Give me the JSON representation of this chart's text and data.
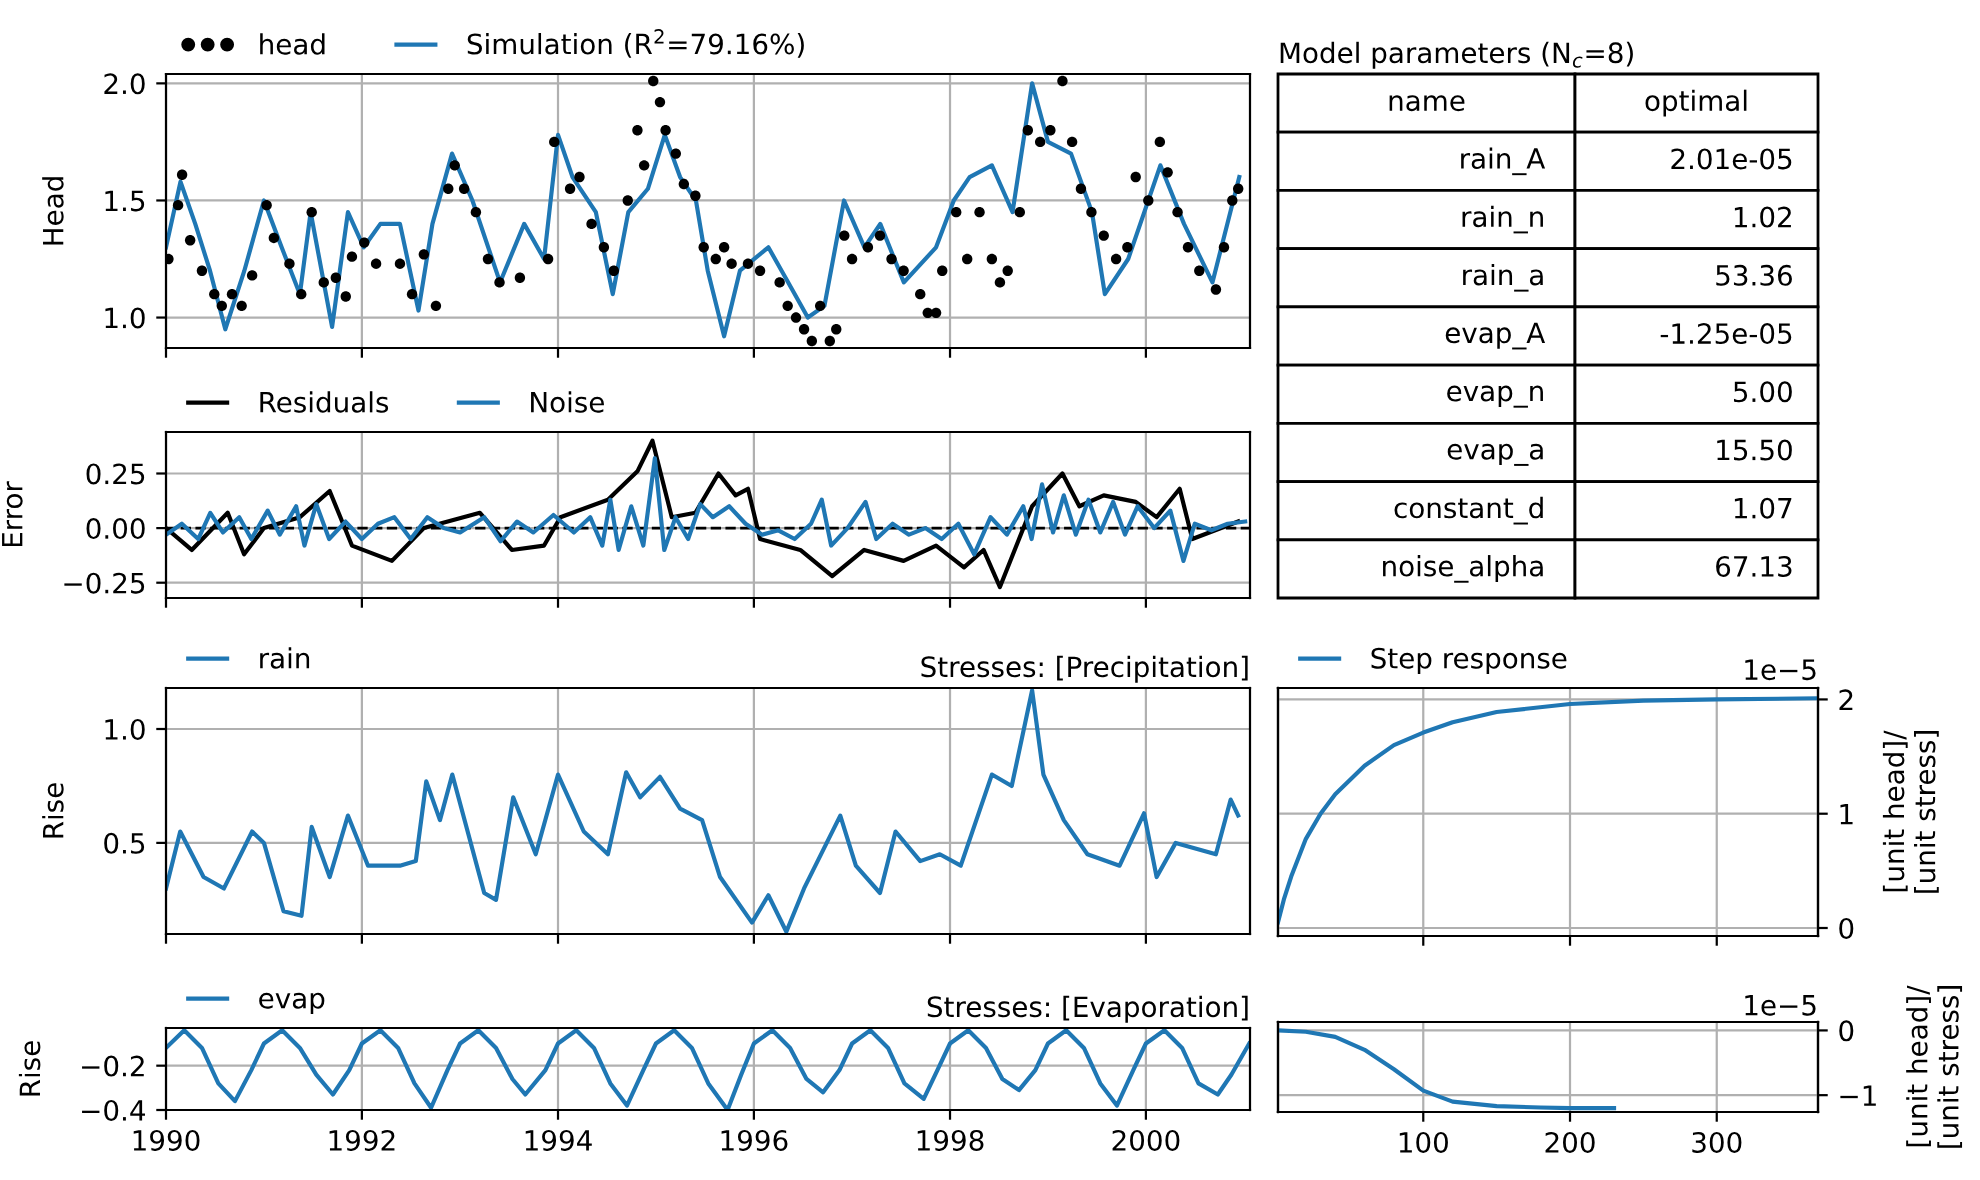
{
  "chart_data": [
    {
      "type": "line",
      "ylabel": "Head",
      "legend": "top left",
      "grid": true,
      "tick_labels": "y",
      "xlim": [
        "1990-01-01",
        "2001-01-23"
      ],
      "xticks": [
        {
          "value": "1990-01-01",
          "label": null
        },
        {
          "value": "1992-01-01",
          "label": null
        },
        {
          "value": "1994-01-01",
          "label": null
        },
        {
          "value": "1996-01-01",
          "label": null
        },
        {
          "value": "1998-01-01",
          "label": null
        },
        {
          "value": "2000-01-01",
          "label": null
        }
      ],
      "ylim": [
        0.87,
        2.04
      ],
      "yticks": [
        {
          "value": 1.0,
          "label": "1.0"
        },
        1.5,
        {
          "value": 2.0,
          "label": "2.0"
        }
      ],
      "series": [
        {
          "name": "head",
          "type": "scatter",
          "marker": "circle",
          "color": "#000000",
          "x": [
            "1990-01-10",
            "1990-02-15",
            "1990-03-02",
            "1990-04-01",
            "1990-05-15",
            "1990-06-30",
            "1990-07-28",
            "1990-09-04",
            "1990-10-10",
            "1990-11-18",
            "1991-01-11",
            "1991-02-07",
            "1991-04-06",
            "1991-05-20",
            "1991-06-28",
            "1991-08-12",
            "1991-09-26",
            "1991-11-02",
            "1991-11-25",
            "1992-01-10",
            "1992-02-23",
            "1992-05-22",
            "1992-07-06",
            "1992-08-19",
            "1992-10-03",
            "1992-11-18",
            "1992-12-12",
            "1993-01-16",
            "1993-03-01",
            "1993-04-15",
            "1993-05-28",
            "1993-08-12",
            "1993-11-25",
            "1993-12-18",
            "1994-02-15",
            "1994-03-22",
            "1994-05-06",
            "1994-06-21",
            "1994-07-28",
            "1994-09-18",
            "1994-10-24",
            "1994-11-18",
            "1994-12-22",
            "1995-01-16",
            "1995-02-06",
            "1995-03-16",
            "1995-04-15",
            "1995-05-28",
            "1995-06-28",
            "1995-08-12",
            "1995-09-12",
            "1995-10-10",
            "1995-12-10",
            "1996-01-24",
            "1996-04-06",
            "1996-05-06",
            "1996-06-06",
            "1996-07-06",
            "1996-08-04",
            "1996-09-04",
            "1996-10-10",
            "1996-11-03",
            "1996-12-03",
            "1997-01-01",
            "1997-03-01",
            "1997-04-15",
            "1997-05-28",
            "1997-07-12",
            "1997-09-12",
            "1997-10-10",
            "1997-11-10",
            "1997-12-03",
            "1998-01-24",
            "1998-03-06",
            "1998-04-21",
            "1998-06-06",
            "1998-07-06",
            "1998-08-04",
            "1998-09-18",
            "1998-10-18",
            "1998-12-03",
            "1999-01-10",
            "1999-02-24",
            "1999-04-01",
            "1999-05-04",
            "1999-06-12",
            "1999-07-28",
            "1999-09-12",
            "1999-10-24",
            "1999-11-24",
            "2000-01-10",
            "2000-02-22",
            "2000-03-22",
            "2000-04-28",
            "2000-06-06",
            "2000-07-18",
            "2000-09-18",
            "2000-10-18",
            "2000-11-18",
            "2000-12-10"
          ],
          "values": [
            1.25,
            1.48,
            1.61,
            1.33,
            1.2,
            1.1,
            1.05,
            1.1,
            1.05,
            1.18,
            1.48,
            1.34,
            1.23,
            1.1,
            1.45,
            1.15,
            1.17,
            1.09,
            1.26,
            1.32,
            1.23,
            1.23,
            1.1,
            1.27,
            1.05,
            1.55,
            1.65,
            1.55,
            1.45,
            1.25,
            1.15,
            1.17,
            1.25,
            1.75,
            1.55,
            1.6,
            1.4,
            1.3,
            1.2,
            1.5,
            1.8,
            1.65,
            2.01,
            1.92,
            1.8,
            1.7,
            1.57,
            1.52,
            1.3,
            1.25,
            1.3,
            1.23,
            1.23,
            1.2,
            1.15,
            1.05,
            1.0,
            0.95,
            0.9,
            1.05,
            0.9,
            0.95,
            1.35,
            1.25,
            1.3,
            1.35,
            1.25,
            1.2,
            1.1,
            1.02,
            1.02,
            1.2,
            1.45,
            1.25,
            1.45,
            1.25,
            1.15,
            1.2,
            1.45,
            1.8,
            1.75,
            1.8,
            2.01,
            1.75,
            1.55,
            1.45,
            1.35,
            1.25,
            1.3,
            1.6,
            1.5,
            1.75,
            1.62,
            1.45,
            1.3,
            1.2,
            1.12,
            1.3,
            1.5,
            1.55
          ]
        },
        {
          "name": "Simulation (R$^{2}$=79.16%)",
          "color": "#1f77b4",
          "x": [
            "1990-01-01",
            "1990-02-24",
            "1990-04-20",
            "1990-06-14",
            "1990-08-10",
            "1990-10-20",
            "1991-01-01",
            "1991-03-08",
            "1991-05-15",
            "1991-06-24",
            "1991-09-12",
            "1991-11-10",
            "1992-01-08",
            "1992-03-10",
            "1992-05-22",
            "1992-07-30",
            "1992-09-20",
            "1992-12-02",
            "1993-02-16",
            "1993-05-30",
            "1993-08-28",
            "1993-11-10",
            "1994-01-01",
            "1994-02-24",
            "1994-05-22",
            "1994-07-24",
            "1994-09-20",
            "1994-12-02",
            "1995-02-03",
            "1995-04-01",
            "1995-05-30",
            "1995-07-13",
            "1995-09-12",
            "1995-11-10",
            "1996-02-24",
            "1996-05-08",
            "1996-07-20",
            "1996-09-20",
            "1996-12-02",
            "1997-02-16",
            "1997-04-16",
            "1997-07-13",
            "1997-11-10",
            "1998-01-15",
            "1998-03-15",
            "1998-06-06",
            "1998-08-22",
            "1998-11-03",
            "1999-01-01",
            "1999-03-28",
            "1999-06-14",
            "1999-08-01",
            "1999-10-27",
            "2000-02-24",
            "2000-05-22",
            "2000-09-05",
            "2000-12-14"
          ],
          "values": [
            1.3,
            1.58,
            1.4,
            1.2,
            0.95,
            1.2,
            1.5,
            1.3,
            1.1,
            1.45,
            0.96,
            1.45,
            1.3,
            1.4,
            1.4,
            1.03,
            1.4,
            1.7,
            1.5,
            1.15,
            1.4,
            1.25,
            1.78,
            1.6,
            1.45,
            1.1,
            1.45,
            1.55,
            1.78,
            1.6,
            1.5,
            1.2,
            0.92,
            1.2,
            1.3,
            1.15,
            1.0,
            1.05,
            1.5,
            1.3,
            1.4,
            1.15,
            1.3,
            1.5,
            1.6,
            1.65,
            1.45,
            2.0,
            1.75,
            1.7,
            1.45,
            1.1,
            1.25,
            1.65,
            1.4,
            1.15,
            1.6
          ]
        }
      ]
    },
    {
      "type": "line",
      "ylabel": "Error",
      "legend": "top left",
      "grid": true,
      "tick_labels": "y",
      "xlim": [
        "1990-01-01",
        "2001-01-23"
      ],
      "xticks": [
        {
          "value": "1990-01-01",
          "label": null
        },
        {
          "value": "1992-01-01",
          "label": null
        },
        {
          "value": "1994-01-01",
          "label": null
        },
        {
          "value": "1996-01-01",
          "label": null
        },
        {
          "value": "1998-01-01",
          "label": null
        },
        {
          "value": "2000-01-01",
          "label": null
        }
      ],
      "ylim": [
        -0.32,
        0.44
      ],
      "yticks": [
        {
          "value": -0.25,
          "label": "−0.25"
        },
        {
          "value": 0.0,
          "label": "0.00"
        },
        {
          "value": 0.25,
          "label": "0.25"
        }
      ],
      "ref_lines": [
        {
          "axis": "y",
          "value": 0,
          "color": "#000000",
          "line_style": "dashed"
        }
      ],
      "series": [
        {
          "name": "Residuals",
          "color": "#000000",
          "x": [
            "1990-01-01",
            "1990-04-07",
            "1990-08-19",
            "1990-10-19",
            "1991-01-01",
            "1991-05-15",
            "1991-09-03",
            "1991-11-25",
            "1992-04-22",
            "1992-08-19",
            "1993-03-16",
            "1993-07-13",
            "1993-11-10",
            "1994-01-10",
            "1994-07-06",
            "1994-10-24",
            "1994-12-19",
            "1995-03-01",
            "1995-05-28",
            "1995-08-22",
            "1995-10-25",
            "1995-12-10",
            "1996-01-24",
            "1996-06-22",
            "1996-10-19",
            "1997-02-15",
            "1997-07-12",
            "1997-11-10",
            "1998-02-22",
            "1998-05-06",
            "1998-07-06",
            "1998-11-03",
            "1999-02-24",
            "1999-04-28",
            "1999-07-28",
            "1999-11-24",
            "2000-02-10",
            "2000-05-06",
            "2000-06-22",
            "2000-12-10"
          ],
          "values": [
            0.0,
            -0.1,
            0.07,
            -0.12,
            0.0,
            0.05,
            0.17,
            -0.08,
            -0.15,
            0.0,
            0.07,
            -0.1,
            -0.08,
            0.05,
            0.13,
            0.26,
            0.4,
            0.05,
            0.07,
            0.25,
            0.15,
            0.18,
            -0.05,
            -0.1,
            -0.22,
            -0.1,
            -0.15,
            -0.08,
            -0.18,
            -0.1,
            -0.27,
            0.1,
            0.25,
            0.1,
            0.15,
            0.12,
            0.05,
            0.18,
            -0.05,
            0.03
          ]
        },
        {
          "name": "Noise",
          "color": "#1f77b4",
          "x": [
            "1990-01-01",
            "1990-03-01",
            "1990-05-01",
            "1990-06-15",
            "1990-08-01",
            "1990-10-01",
            "1990-11-15",
            "1991-01-15",
            "1991-03-01",
            "1991-05-01",
            "1991-06-01",
            "1991-07-15",
            "1991-09-01",
            "1991-11-01",
            "1992-01-01",
            "1992-03-01",
            "1992-05-01",
            "1992-07-01",
            "1992-09-01",
            "1992-11-01",
            "1993-01-01",
            "1993-04-01",
            "1993-06-01",
            "1993-08-01",
            "1993-10-01",
            "1993-12-15",
            "1994-03-01",
            "1994-05-01",
            "1994-06-15",
            "1994-07-15",
            "1994-08-15",
            "1994-10-01",
            "1994-11-15",
            "1994-12-28",
            "1995-02-01",
            "1995-03-15",
            "1995-05-01",
            "1995-06-15",
            "1995-08-01",
            "1995-10-01",
            "1995-12-01",
            "1996-02-01",
            "1996-04-01",
            "1996-06-01",
            "1996-08-01",
            "1996-09-10",
            "1996-10-15",
            "1996-12-15",
            "1997-02-20",
            "1997-04-01",
            "1997-06-01",
            "1997-08-01",
            "1997-10-01",
            "1997-12-01",
            "1998-02-01",
            "1998-04-01",
            "1998-06-01",
            "1998-08-01",
            "1998-10-01",
            "1998-11-01",
            "1998-12-10",
            "1999-01-20",
            "1999-03-01",
            "1999-04-15",
            "1999-06-01",
            "1999-07-15",
            "1999-09-01",
            "1999-10-15",
            "1999-12-01",
            "2000-02-01",
            "2000-04-01",
            "2000-05-20",
            "2000-07-01",
            "2000-09-01",
            "2000-11-01",
            "2001-01-05"
          ],
          "values": [
            -0.03,
            0.02,
            -0.05,
            0.07,
            -0.02,
            0.05,
            -0.05,
            0.08,
            -0.03,
            0.1,
            -0.08,
            0.11,
            -0.05,
            0.03,
            -0.05,
            0.02,
            0.05,
            -0.05,
            0.05,
            0.0,
            -0.02,
            0.05,
            -0.06,
            0.03,
            -0.02,
            0.06,
            -0.02,
            0.05,
            -0.08,
            0.13,
            -0.1,
            0.1,
            -0.08,
            0.32,
            -0.1,
            0.05,
            -0.05,
            0.11,
            0.05,
            0.1,
            0.02,
            -0.03,
            -0.01,
            -0.05,
            0.02,
            0.13,
            -0.08,
            0.0,
            0.12,
            -0.05,
            0.02,
            -0.03,
            0.0,
            -0.05,
            0.02,
            -0.12,
            0.05,
            -0.03,
            0.1,
            -0.05,
            0.2,
            -0.02,
            0.15,
            -0.03,
            0.13,
            -0.02,
            0.12,
            -0.03,
            0.1,
            0.0,
            0.08,
            -0.15,
            0.02,
            -0.01,
            0.02,
            0.03
          ]
        }
      ]
    },
    {
      "type": "line",
      "title": "Stresses: [Precipitation]",
      "ylabel": "Rise",
      "legend": "top left",
      "grid": true,
      "tick_labels": "y",
      "xlim": [
        "1990-01-01",
        "2001-01-23"
      ],
      "xticks": [
        {
          "value": "1990-01-01",
          "label": null
        },
        {
          "value": "1992-01-01",
          "label": null
        },
        {
          "value": "1994-01-01",
          "label": null
        },
        {
          "value": "1996-01-01",
          "label": null
        },
        {
          "value": "1998-01-01",
          "label": null
        },
        {
          "value": "2000-01-01",
          "label": null
        }
      ],
      "ylim": [
        0.1,
        1.18
      ],
      "yticks": [
        0.5,
        {
          "value": 1.0,
          "label": "1.0"
        }
      ],
      "x": [
        "1990-01-01",
        "1990-02-23",
        "1990-05-21",
        "1990-08-05",
        "1990-11-18",
        "1991-01-01",
        "1991-03-15",
        "1991-05-21",
        "1991-06-28",
        "1991-09-03",
        "1991-11-10",
        "1992-01-24",
        "1992-05-22",
        "1992-07-20",
        "1992-08-28",
        "1992-10-18",
        "1992-12-03",
        "1993-04-01",
        "1993-05-15",
        "1993-07-18",
        "1993-10-10",
        "1994-01-01",
        "1994-04-07",
        "1994-07-06",
        "1994-09-12",
        "1994-11-03",
        "1995-01-16",
        "1995-04-01",
        "1995-06-22",
        "1995-08-28",
        "1995-12-25",
        "1996-02-24",
        "1996-05-01",
        "1996-07-06",
        "1996-11-18",
        "1997-01-15",
        "1997-04-15",
        "1997-06-12",
        "1997-09-12",
        "1997-11-24",
        "1998-02-10",
        "1998-06-06",
        "1998-08-19",
        "1998-11-03",
        "1998-12-15",
        "1999-03-01",
        "1999-05-28",
        "1999-09-25",
        "1999-12-25",
        "2000-02-10",
        "2000-04-21",
        "2000-09-18",
        "2000-11-12",
        "2000-12-10"
      ],
      "series": [
        {
          "name": "rain",
          "color": "#1f77b4",
          "values": [
            0.3,
            0.55,
            0.35,
            0.3,
            0.55,
            0.5,
            0.2,
            0.18,
            0.57,
            0.35,
            0.62,
            0.4,
            0.4,
            0.42,
            0.77,
            0.6,
            0.8,
            0.28,
            0.25,
            0.7,
            0.45,
            0.8,
            0.55,
            0.45,
            0.81,
            0.7,
            0.79,
            0.65,
            0.6,
            0.35,
            0.15,
            0.27,
            0.11,
            0.3,
            0.62,
            0.4,
            0.28,
            0.55,
            0.42,
            0.45,
            0.4,
            0.8,
            0.75,
            1.17,
            0.8,
            0.6,
            0.45,
            0.4,
            0.63,
            0.35,
            0.5,
            0.45,
            0.69,
            0.62
          ]
        }
      ]
    },
    {
      "type": "line",
      "title": "Stresses: [Evaporation]",
      "ylabel": "Rise",
      "legend": "top left",
      "grid": true,
      "xlim": [
        "1990-01-01",
        "2001-01-23"
      ],
      "xticks": [
        {
          "value": "1990-01-01",
          "label": "1990"
        },
        {
          "value": "1992-01-01",
          "label": "1992"
        },
        {
          "value": "1994-01-01",
          "label": "1994"
        },
        {
          "value": "1996-01-01",
          "label": "1996"
        },
        {
          "value": "1998-01-01",
          "label": "1998"
        },
        {
          "value": "2000-01-01",
          "label": "2000"
        }
      ],
      "ylim": [
        -0.4,
        -0.03
      ],
      "yticks": [
        {
          "value": -0.4,
          "label": "−0.4"
        },
        {
          "value": -0.2,
          "label": "−0.2"
        }
      ],
      "x": [
        "1990-01-01",
        "1990-03-10",
        "1990-05-15",
        "1990-07-15",
        "1990-09-15",
        "1990-11-15",
        "1991-01-01",
        "1991-03-10",
        "1991-05-15",
        "1991-07-15",
        "1991-09-15",
        "1991-11-15",
        "1992-01-01",
        "1992-03-10",
        "1992-05-15",
        "1992-07-15",
        "1992-09-15",
        "1992-11-15",
        "1993-01-01",
        "1993-03-10",
        "1993-05-15",
        "1993-07-15",
        "1993-09-01",
        "1993-11-15",
        "1994-01-01",
        "1994-03-10",
        "1994-05-15",
        "1994-07-15",
        "1994-09-15",
        "1994-11-15",
        "1995-01-01",
        "1995-03-10",
        "1995-05-15",
        "1995-07-15",
        "1995-09-25",
        "1995-11-15",
        "1996-01-01",
        "1996-03-10",
        "1996-05-15",
        "1996-07-15",
        "1996-09-15",
        "1996-11-15",
        "1997-01-01",
        "1997-03-10",
        "1997-05-15",
        "1997-07-15",
        "1997-09-25",
        "1997-11-15",
        "1998-01-01",
        "1998-03-10",
        "1998-05-15",
        "1998-07-15",
        "1998-09-15",
        "1998-11-15",
        "1999-01-01",
        "1999-03-10",
        "1999-05-15",
        "1999-07-15",
        "1999-09-15",
        "1999-11-15",
        "2000-01-01",
        "2000-03-10",
        "2000-05-15",
        "2000-07-15",
        "2000-09-25",
        "2000-11-15",
        "2001-01-20"
      ],
      "series": [
        {
          "name": "evap",
          "color": "#1f77b4",
          "values": [
            -0.12,
            -0.04,
            -0.12,
            -0.28,
            -0.36,
            -0.22,
            -0.1,
            -0.04,
            -0.12,
            -0.24,
            -0.33,
            -0.22,
            -0.1,
            -0.04,
            -0.12,
            -0.28,
            -0.39,
            -0.22,
            -0.1,
            -0.04,
            -0.12,
            -0.26,
            -0.33,
            -0.22,
            -0.1,
            -0.04,
            -0.12,
            -0.28,
            -0.38,
            -0.22,
            -0.1,
            -0.04,
            -0.12,
            -0.28,
            -0.4,
            -0.24,
            -0.1,
            -0.04,
            -0.12,
            -0.26,
            -0.32,
            -0.22,
            -0.1,
            -0.04,
            -0.12,
            -0.28,
            -0.35,
            -0.22,
            -0.1,
            -0.04,
            -0.12,
            -0.26,
            -0.31,
            -0.22,
            -0.1,
            -0.04,
            -0.12,
            -0.28,
            -0.38,
            -0.22,
            -0.1,
            -0.04,
            -0.12,
            -0.28,
            -0.33,
            -0.24,
            -0.1
          ]
        }
      ]
    },
    {
      "type": "other",
      "title": "Model parameters (N$_{c}$=8)",
      "annotations": [
        "name",
        "optimal"
      ],
      "categories": [
        "rain_A",
        "rain_n",
        "rain_a",
        "evap_A",
        "evap_n",
        "evap_a",
        "constant_d",
        "noise_alpha"
      ],
      "value_labels": [
        "2.01e-05",
        "1.02",
        "53.36",
        "-1.25e-05",
        "5.00",
        "15.50",
        "1.07",
        "67.13"
      ]
    },
    {
      "type": "line",
      "legend": "top left",
      "grid": true,
      "tick_labels": "y",
      "y2label": "[unit head]/\n[unit stress]",
      "annotations": [
        "1e−5"
      ],
      "xlim": [
        1,
        369
      ],
      "xticks": [
        {
          "value": 100,
          "label": null
        },
        {
          "value": 200,
          "label": null
        },
        {
          "value": 300,
          "label": null
        }
      ],
      "y2lim": [
        -0.07,
        2.1
      ],
      "y2ticks": [
        0,
        1,
        2
      ],
      "series": [
        {
          "name": "Step response",
          "axis": "y2",
          "color": "#1f77b4",
          "x": [
            1,
            5,
            10,
            20,
            30,
            40,
            60,
            80,
            100,
            120,
            150,
            200,
            250,
            300,
            369
          ],
          "values": [
            0.05,
            0.25,
            0.45,
            0.78,
            1.0,
            1.17,
            1.42,
            1.6,
            1.71,
            1.8,
            1.89,
            1.96,
            1.99,
            2.0,
            2.01
          ]
        }
      ]
    },
    {
      "type": "line",
      "grid": true,
      "y2label": "[unit head]/\n[unit stress]",
      "annotations": [
        "1e−5"
      ],
      "xlim": [
        1,
        369
      ],
      "xticks": [
        100,
        200,
        300
      ],
      "y2lim": [
        -1.26,
        0.13
      ],
      "y2ticks": [
        {
          "value": -1,
          "label": "−1"
        },
        0
      ],
      "series": [
        {
          "axis": "y2",
          "color": "#1f77b4",
          "x": [
            1,
            20,
            40,
            60,
            80,
            100,
            120,
            150,
            180,
            200,
            230
          ],
          "values": [
            0,
            -0.02,
            -0.1,
            -0.3,
            -0.6,
            -0.93,
            -1.1,
            -1.17,
            -1.19,
            -1.2,
            -1.2
          ]
        }
      ]
    }
  ]
}
